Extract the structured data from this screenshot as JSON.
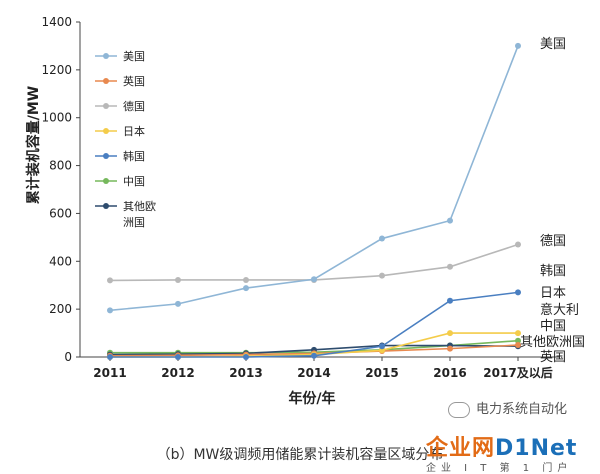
{
  "chart_data": {
    "type": "line",
    "title": "",
    "xlabel": "年份/年",
    "ylabel": "累计装机容量/MW",
    "ylim": [
      0,
      1400
    ],
    "yticks": [
      0,
      200,
      400,
      600,
      800,
      1000,
      1200,
      1400
    ],
    "categories": [
      "2011",
      "2012",
      "2013",
      "2014",
      "2015",
      "2016",
      "2017及以后"
    ],
    "grid": false,
    "legend_position": "top-left",
    "series": [
      {
        "name": "美国",
        "color": "#8fb6d6",
        "values": [
          195,
          222,
          288,
          325,
          495,
          570,
          1300
        ],
        "end_label": "美国"
      },
      {
        "name": "英国",
        "color": "#e8894f",
        "values": [
          5,
          7,
          10,
          15,
          25,
          35,
          50
        ],
        "end_label": "英国"
      },
      {
        "name": "德国",
        "color": "#b8b8b8",
        "values": [
          320,
          322,
          322,
          322,
          340,
          377,
          470
        ],
        "end_label": "德国"
      },
      {
        "name": "日本",
        "color": "#f4cc4a",
        "values": [
          0,
          0,
          3,
          10,
          28,
          100,
          100
        ],
        "end_label": "日本"
      },
      {
        "name": "韩国",
        "color": "#4a7fc1",
        "values": [
          0,
          0,
          0,
          5,
          45,
          235,
          270
        ],
        "end_label": "韩国"
      },
      {
        "name": "中国",
        "color": "#76b85c",
        "values": [
          18,
          18,
          18,
          20,
          30,
          48,
          68
        ],
        "end_label": "中国"
      },
      {
        "name": "其他欧洲国",
        "color": "#2e4c6e",
        "values": [
          10,
          12,
          15,
          30,
          48,
          48,
          45
        ],
        "end_label": "其他欧洲国"
      }
    ],
    "extra_labels": [
      "意大利"
    ]
  },
  "caption": "（b）MW级调频用储能累计装机容量区域分布",
  "watermark": {
    "wechat_text": "电力系统自动化",
    "brand_a": "企业网",
    "brand_b": "D1Net",
    "brand_sub": "企业 I T 第 1 门户"
  }
}
